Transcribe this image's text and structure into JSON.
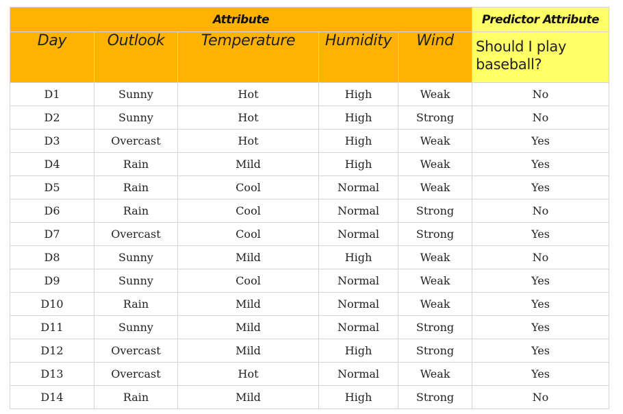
{
  "header": {
    "attribute_group": "Attribute",
    "predictor_group": "Predictor Attribute",
    "columns": [
      "Day",
      "Outlook",
      "Temperature",
      "Humidity",
      "Wind",
      "Should I play baseball?"
    ]
  },
  "colors": {
    "attribute_header_bg": "#ffb300",
    "predictor_header_bg": "#ffff66",
    "grid_line": "#d4d4d4"
  },
  "rows": [
    [
      "D1",
      "Sunny",
      "Hot",
      "High",
      "Weak",
      "No"
    ],
    [
      "D2",
      "Sunny",
      "Hot",
      "High",
      "Strong",
      "No"
    ],
    [
      "D3",
      "Overcast",
      "Hot",
      "High",
      "Weak",
      "Yes"
    ],
    [
      "D4",
      "Rain",
      "Mild",
      "High",
      "Weak",
      "Yes"
    ],
    [
      "D5",
      "Rain",
      "Cool",
      "Normal",
      "Weak",
      "Yes"
    ],
    [
      "D6",
      "Rain",
      "Cool",
      "Normal",
      "Strong",
      "No"
    ],
    [
      "D7",
      "Overcast",
      "Cool",
      "Normal",
      "Strong",
      "Yes"
    ],
    [
      "D8",
      "Sunny",
      "Mild",
      "High",
      "Weak",
      "No"
    ],
    [
      "D9",
      "Sunny",
      "Cool",
      "Normal",
      "Weak",
      "Yes"
    ],
    [
      "D10",
      "Rain",
      "Mild",
      "Normal",
      "Weak",
      "Yes"
    ],
    [
      "D11",
      "Sunny",
      "Mild",
      "Normal",
      "Strong",
      "Yes"
    ],
    [
      "D12",
      "Overcast",
      "Mild",
      "High",
      "Strong",
      "Yes"
    ],
    [
      "D13",
      "Overcast",
      "Hot",
      "Normal",
      "Weak",
      "Yes"
    ],
    [
      "D14",
      "Rain",
      "Mild",
      "High",
      "Strong",
      "No"
    ]
  ]
}
